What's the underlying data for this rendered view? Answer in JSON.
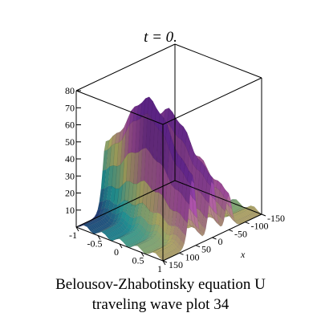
{
  "chart_data": {
    "type": "surface3d",
    "title": "t = 0.",
    "caption_line1": "Belousov-Zhabotinsky equation U",
    "caption_line2": "traveling wave plot 34",
    "xlabel": "x",
    "ylabel": "",
    "zlabel": "",
    "xlim": [
      -150,
      150
    ],
    "ylim": [
      -1,
      1
    ],
    "zlim": [
      0,
      80
    ],
    "x_ticks": [
      -150,
      -100,
      -50,
      0,
      50,
      100,
      150
    ],
    "y_ticks": [
      -1,
      -0.5,
      0,
      0.5,
      1
    ],
    "z_ticks": [
      10,
      20,
      30,
      40,
      50,
      60,
      70,
      80
    ],
    "peaks": [
      {
        "x": 60,
        "z": 75
      },
      {
        "x": 0,
        "z": 63
      },
      {
        "x": -50,
        "z": 38
      }
    ],
    "colormap": [
      "#2b3f9e",
      "#2fd0d0",
      "#f3f08a",
      "#e06bd8",
      "#8a35c8"
    ]
  }
}
